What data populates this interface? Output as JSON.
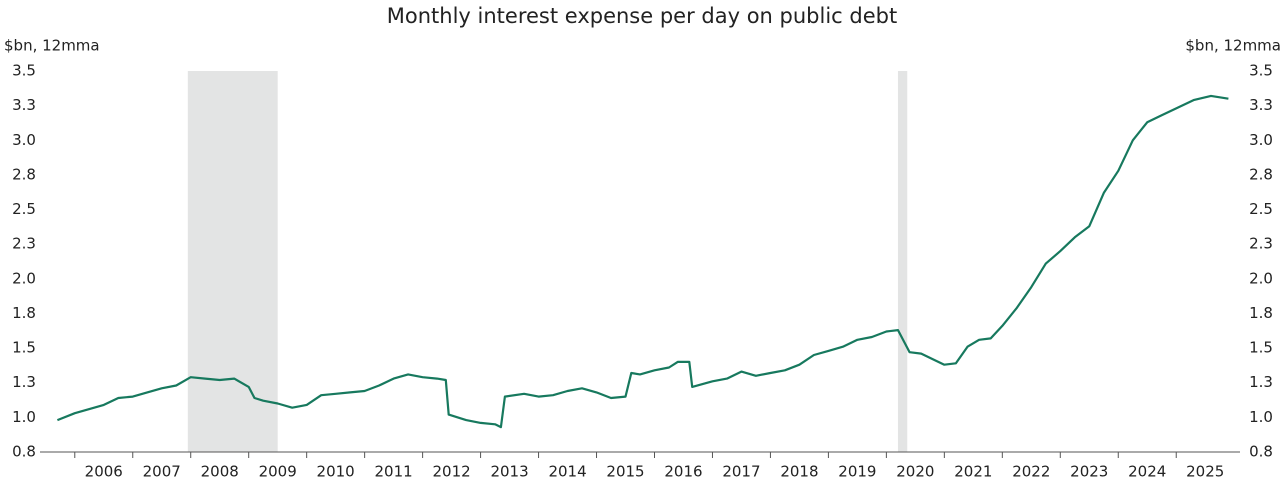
{
  "chart_data": {
    "type": "line",
    "title": "Monthly interest expense per day on public debt",
    "y_label": "$bn, 12mma",
    "y2_label": "$bn, 12mma",
    "x": [
      2005.7,
      2006.0,
      2006.25,
      2006.5,
      2006.75,
      2007.0,
      2007.25,
      2007.5,
      2007.75,
      2008.0,
      2008.25,
      2008.5,
      2008.75,
      2009.0,
      2009.1,
      2009.25,
      2009.5,
      2009.75,
      2010.0,
      2010.25,
      2010.5,
      2010.75,
      2011.0,
      2011.25,
      2011.5,
      2011.75,
      2012.0,
      2012.25,
      2012.4,
      2012.45,
      2012.75,
      2013.0,
      2013.25,
      2013.35,
      2013.42,
      2013.75,
      2014.0,
      2014.25,
      2014.5,
      2014.75,
      2015.0,
      2015.25,
      2015.5,
      2015.6,
      2015.75,
      2016.0,
      2016.25,
      2016.4,
      2016.6,
      2016.65,
      2017.0,
      2017.25,
      2017.5,
      2017.75,
      2018.0,
      2018.25,
      2018.5,
      2018.75,
      2019.0,
      2019.25,
      2019.5,
      2019.75,
      2020.0,
      2020.2,
      2020.4,
      2020.6,
      2020.85,
      2021.0,
      2021.2,
      2021.4,
      2021.6,
      2021.8,
      2022.0,
      2022.25,
      2022.5,
      2022.75,
      2023.0,
      2023.25,
      2023.5,
      2023.75,
      2024.0,
      2024.25,
      2024.5,
      2024.75,
      2025.0,
      2025.3,
      2025.6,
      2025.9
    ],
    "series": [
      {
        "name": "Interest expense per day",
        "color": "#17795e",
        "values": [
          0.98,
          1.03,
          1.06,
          1.09,
          1.14,
          1.15,
          1.18,
          1.21,
          1.23,
          1.29,
          1.28,
          1.27,
          1.28,
          1.22,
          1.14,
          1.12,
          1.1,
          1.07,
          1.09,
          1.16,
          1.17,
          1.18,
          1.19,
          1.23,
          1.28,
          1.31,
          1.29,
          1.28,
          1.27,
          1.02,
          0.98,
          0.96,
          0.95,
          0.93,
          1.15,
          1.17,
          1.15,
          1.16,
          1.19,
          1.21,
          1.18,
          1.14,
          1.15,
          1.32,
          1.31,
          1.34,
          1.36,
          1.4,
          1.4,
          1.22,
          1.26,
          1.28,
          1.33,
          1.3,
          1.32,
          1.34,
          1.38,
          1.45,
          1.48,
          1.51,
          1.56,
          1.58,
          1.62,
          1.63,
          1.47,
          1.46,
          1.41,
          1.38,
          1.39,
          1.51,
          1.56,
          1.57,
          1.66,
          1.79,
          1.94,
          2.11,
          2.2,
          2.3,
          2.38,
          2.62,
          2.78,
          3.0,
          3.13,
          3.18,
          3.23,
          3.29,
          3.32,
          3.3
        ]
      }
    ],
    "shaded": [
      [
        2007.95,
        2009.5
      ],
      [
        2020.2,
        2020.36
      ]
    ],
    "shade_color": "#e3e4e4",
    "xlim": [
      2005.4,
      2026.1
    ],
    "xticks": [
      2006,
      2007,
      2008,
      2009,
      2010,
      2011,
      2012,
      2013,
      2014,
      2015,
      2016,
      2017,
      2018,
      2019,
      2020,
      2021,
      2022,
      2023,
      2024,
      2025
    ],
    "ylim": [
      0.75,
      3.5
    ],
    "yticks": [
      {
        "value": 0.75,
        "label": "0.8"
      },
      {
        "value": 1,
        "label": "1.0"
      },
      {
        "value": 1.25,
        "label": "1.3"
      },
      1.5,
      {
        "value": 1.75,
        "label": "1.8"
      },
      {
        "value": 2,
        "label": "2.0"
      },
      {
        "value": 2.25,
        "label": "2.3"
      },
      2.5,
      {
        "value": 2.75,
        "label": "2.8"
      },
      {
        "value": 3,
        "label": "3.0"
      },
      {
        "value": 3.25,
        "label": "3.3"
      },
      3.5
    ],
    "grid": false
  }
}
